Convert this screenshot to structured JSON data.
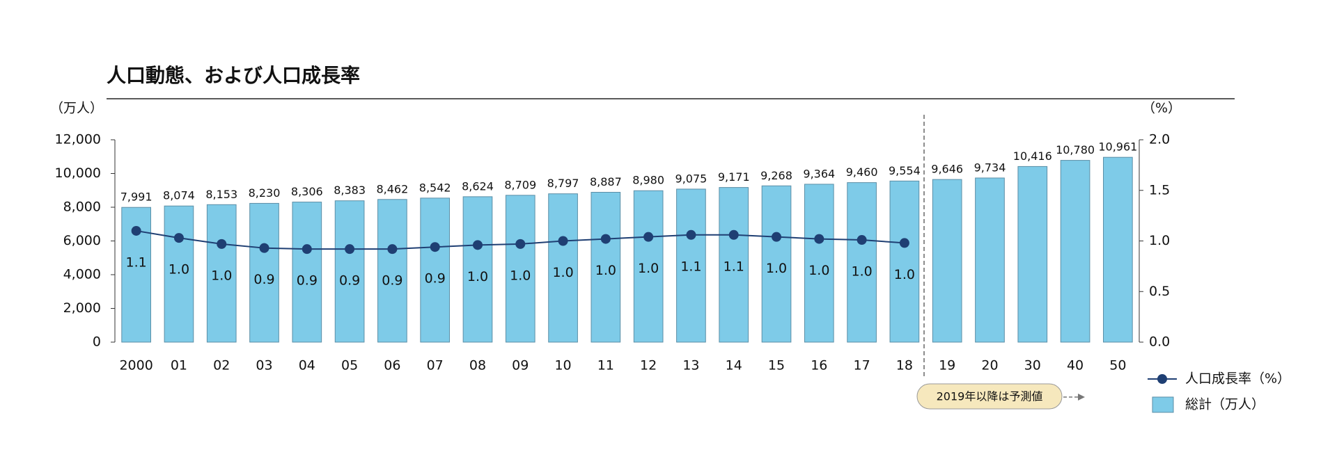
{
  "chart_data": {
    "type": "bar",
    "title": "人口動態、および人口成長率",
    "y_label": "（万人）",
    "y2_label": "（%）",
    "annotation": "2019年以降は予測値",
    "categories": [
      "2000",
      "01",
      "02",
      "03",
      "04",
      "05",
      "06",
      "07",
      "08",
      "09",
      "10",
      "11",
      "12",
      "13",
      "14",
      "15",
      "16",
      "17",
      "18",
      "19",
      "20",
      "30",
      "40",
      "50"
    ],
    "series": [
      {
        "name": "人口成長率（%）",
        "type": "line",
        "axis": "y2",
        "color": "#1f3f73",
        "values": [
          1.1,
          1.03,
          0.97,
          0.93,
          0.92,
          0.92,
          0.92,
          0.94,
          0.96,
          0.97,
          1.0,
          1.02,
          1.04,
          1.06,
          1.06,
          1.04,
          1.02,
          1.01,
          0.98,
          null,
          null,
          null,
          null,
          null
        ],
        "value_labels": [
          "1.1",
          "1.0",
          "1.0",
          "0.9",
          "0.9",
          "0.9",
          "0.9",
          "0.9",
          "1.0",
          "1.0",
          "1.0",
          "1.0",
          "1.0",
          "1.1",
          "1.1",
          "1.0",
          "1.0",
          "1.0",
          "1.0",
          null,
          null,
          null,
          null,
          null
        ]
      },
      {
        "name": "総計（万人）",
        "type": "bar",
        "axis": "y",
        "color": "#7ecbe8",
        "values": [
          7991,
          8074,
          8153,
          8230,
          8306,
          8383,
          8462,
          8542,
          8624,
          8709,
          8797,
          8887,
          8980,
          9075,
          9171,
          9268,
          9364,
          9460,
          9554,
          9646,
          9734,
          10416,
          10780,
          10961
        ],
        "value_labels": [
          "7,991",
          "8,074",
          "8,153",
          "8,230",
          "8,306",
          "8,383",
          "8,462",
          "8,542",
          "8,624",
          "8,709",
          "8,797",
          "8,887",
          "8,980",
          "9,075",
          "9,171",
          "9,268",
          "9,364",
          "9,460",
          "9,554",
          "9,646",
          "9,734",
          "10,416",
          "10,780",
          "10,961"
        ]
      }
    ],
    "ylim": [
      0,
      12000
    ],
    "yticks": [
      0,
      {
        "value": 2000,
        "label": "2,000"
      },
      {
        "value": 4000,
        "label": "4,000"
      },
      {
        "value": 6000,
        "label": "6,000"
      },
      {
        "value": 8000,
        "label": "8,000"
      },
      {
        "value": 10000,
        "label": "10,000"
      },
      {
        "value": 12000,
        "label": "12,000"
      }
    ],
    "y2lim": [
      0,
      2
    ],
    "y2ticks": [
      {
        "value": 0,
        "label": "0.0"
      },
      0.5,
      {
        "value": 1,
        "label": "1.0"
      },
      1.5,
      {
        "value": 2,
        "label": "2.0"
      }
    ]
  }
}
